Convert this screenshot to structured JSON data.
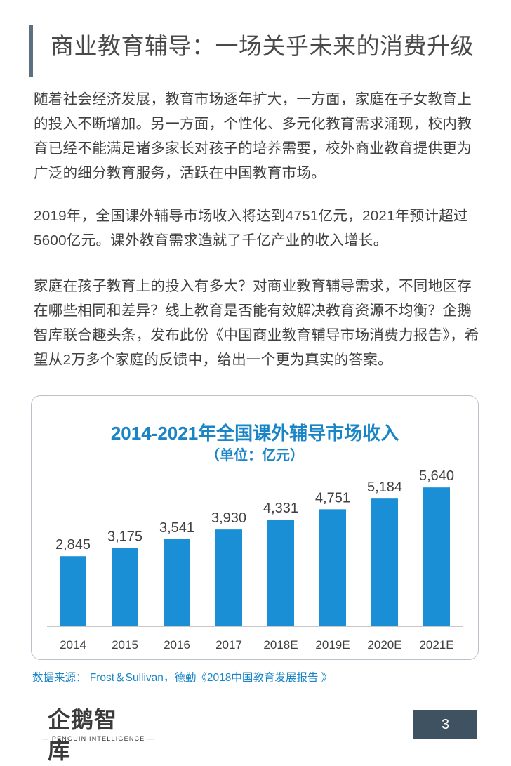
{
  "header": {
    "title": "商业教育辅导：一场关乎未来的消费升级"
  },
  "paragraphs": {
    "p1": "随着社会经济发展，教育市场逐年扩大，一方面，家庭在子女教育上的投入不断增加。另一方面，个性化、多元化教育需求涌现，校内教育已经不能满足诸多家长对孩子的培养需要，校外商业教育提供更为广泛的细分教育服务，活跃在中国教育市场。",
    "p2": "2019年，全国课外辅导市场收入将达到4751亿元，2021年预计超过5600亿元。课外教育需求造就了千亿产业的收入增长。",
    "p3": "家庭在孩子教育上的投入有多大？对商业教育辅导需求，不同地区存在哪些相同和差异？线上教育是否能有效解决教育资源不均衡？企鹅智库联合趣头条，发布此份《中国商业教育辅导市场消费力报告》，希望从2万多个家庭的反馈中，给出一个更为真实的答案。"
  },
  "chart_data": {
    "type": "bar",
    "title": "2014-2021年全国课外辅导市场收入",
    "subtitle": "（单位：亿元）",
    "categories": [
      "2014",
      "2015",
      "2016",
      "2017",
      "2018E",
      "2019E",
      "2020E",
      "2021E"
    ],
    "values": [
      2845,
      3175,
      3541,
      3930,
      4331,
      4751,
      5184,
      5640
    ],
    "value_labels": [
      "2,845",
      "3,175",
      "3,541",
      "3,930",
      "4,331",
      "4,751",
      "5,184",
      "5,640"
    ],
    "ylim": [
      0,
      6500
    ],
    "grid": false,
    "bar_color": "#1a8fd6"
  },
  "footer": {
    "source": "数据来源： Frost＆Sullivan，德勤《2018中国教育发展报告 》",
    "logo_text": "企鹅智库",
    "logo_sub": "— PENGUIN INTELLIGENCE —",
    "page_number": "3"
  },
  "colors": {
    "accent": "#1a85c6",
    "title_bar": "#5b6f80",
    "page_box": "#3f5262"
  }
}
